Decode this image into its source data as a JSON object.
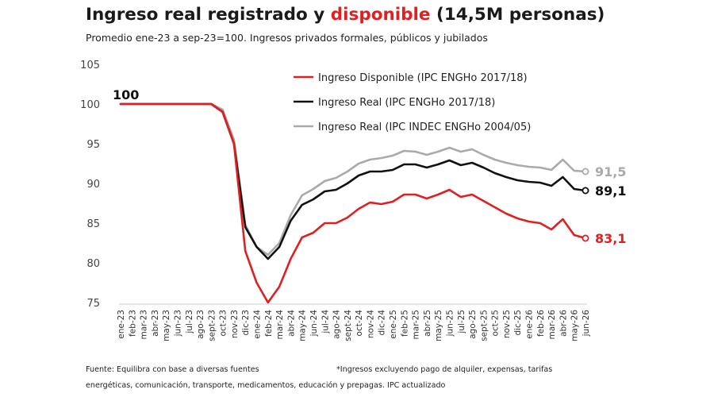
{
  "header": {
    "title_before": "Ingreso real registrado y ",
    "title_highlight": "disponible",
    "title_after": " (14,5M personas)",
    "subtitle": "Promedio ene-23 a sep-23=100. Ingresos privados formales, públicos y jubilados"
  },
  "footer": {
    "source": "Fuente: Equilibra con base a diversas fuentes",
    "note_line1": "*Ingresos excluyendo pago de alquiler, expensas, tarifas",
    "note_line2": "energéticas, comunicación, transporte, medicamentos, educación y prepagas. IPC actualizado"
  },
  "chart_data": {
    "type": "line",
    "title": "Ingreso real registrado y disponible (14,5M personas)",
    "subtitle": "Promedio ene-23 a sep-23=100. Ingresos privados formales, públicos y jubilados",
    "xlabel": "",
    "ylabel": "",
    "ylim": [
      75,
      105
    ],
    "yticks": [
      "75",
      "80",
      "85",
      "90",
      "95",
      "100",
      "105"
    ],
    "grid": false,
    "legend_position": "top-center",
    "categories": [
      "ene-23",
      "feb-23",
      "mar-23",
      "abr-23",
      "may-23",
      "jun-23",
      "jul-23",
      "ago-23",
      "sept-23",
      "oct-23",
      "nov-23",
      "dic-23",
      "ene-24",
      "feb-24",
      "mar-24",
      "abr-24",
      "may-24",
      "jun-24",
      "jul-24",
      "ago-24",
      "sept-24",
      "oct-24",
      "nov-24",
      "dic-24",
      "ene-25",
      "feb-25",
      "mar-25",
      "abr-25",
      "may-25",
      "jun-25",
      "jul-25",
      "ago-25",
      "sept-25",
      "oct-25",
      "nov-25",
      "dic-25",
      "ene-26",
      "feb-26",
      "mar-26",
      "abr-26",
      "may-26",
      "jun-26"
    ],
    "series": [
      {
        "name": "Ingreso Disponible (IPC ENGHo 2017/18)",
        "color": "#e02020",
        "values": [
          100,
          100,
          100,
          100,
          100,
          100,
          100,
          100,
          100,
          99,
          95,
          81.5,
          77.5,
          75,
          77,
          80.5,
          83.2,
          83.8,
          85,
          85,
          85.7,
          86.8,
          87.6,
          87.4,
          87.7,
          88.6,
          88.6,
          88.1,
          88.6,
          89.2,
          88.3,
          88.6,
          87.8,
          87,
          86.2,
          85.6,
          85.2,
          85,
          84.2,
          85.5,
          83.5,
          83.1
        ]
      },
      {
        "name": "Ingreso Real (IPC ENGHo 2017/18)",
        "color": "#111111",
        "values": [
          100,
          100,
          100,
          100,
          100,
          100,
          100,
          100,
          100,
          99,
          95,
          84.5,
          82,
          80.5,
          82,
          85.3,
          87.3,
          88,
          89,
          89.2,
          90,
          91,
          91.5,
          91.5,
          91.7,
          92.4,
          92.4,
          92,
          92.4,
          92.9,
          92.3,
          92.6,
          92,
          91.3,
          90.8,
          90.4,
          90.2,
          90.1,
          89.7,
          90.8,
          89.3,
          89.1
        ]
      },
      {
        "name": "Ingreso Real (IPC INDEC ENGHo 2004/05)",
        "color": "#aaaaaa",
        "values": [
          100,
          100,
          100,
          100,
          100,
          100,
          100,
          100,
          100,
          99.3,
          95.5,
          84.8,
          82,
          81,
          82.5,
          86,
          88.5,
          89.3,
          90.3,
          90.7,
          91.5,
          92.5,
          93,
          93.2,
          93.5,
          94.1,
          94,
          93.6,
          94,
          94.5,
          94,
          94.3,
          93.6,
          93,
          92.6,
          92.3,
          92.1,
          92,
          91.7,
          93,
          91.6,
          91.5
        ]
      }
    ],
    "annotations": [
      {
        "text": "100",
        "category": "ene-23",
        "value": 100,
        "color": "#111111"
      },
      {
        "text": "91,5",
        "category": "jun-26",
        "value": 91.5,
        "color": "#aaaaaa"
      },
      {
        "text": "89,1",
        "category": "jun-26",
        "value": 89.1,
        "color": "#111111"
      },
      {
        "text": "83,1",
        "category": "jun-26",
        "value": 83.1,
        "color": "#e02020"
      }
    ]
  }
}
